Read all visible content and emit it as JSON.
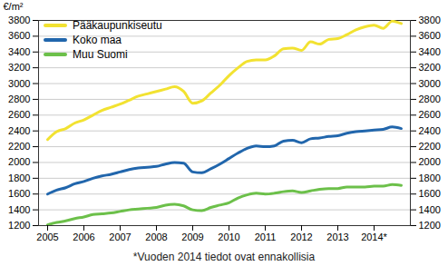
{
  "chart_data": {
    "type": "line",
    "y_label": "€/m²",
    "caption": "*Vuoden 2014 tiedot ovat ennakollisia",
    "categories": [
      "2005",
      null,
      null,
      null,
      "2006",
      null,
      null,
      null,
      "2007",
      null,
      null,
      null,
      "2008",
      null,
      null,
      null,
      "2009",
      null,
      null,
      null,
      "2010",
      null,
      null,
      null,
      "2011",
      null,
      null,
      null,
      "2012",
      null,
      null,
      null,
      "2013",
      null,
      null,
      null,
      "2014*",
      null,
      null,
      null
    ],
    "series": [
      {
        "name": "Pääkaupunkiseutu",
        "color": "#f2e231",
        "values": [
          2290,
          2390,
          2430,
          2500,
          2540,
          2600,
          2660,
          2700,
          2740,
          2790,
          2840,
          2870,
          2900,
          2930,
          2960,
          2900,
          2750,
          2780,
          2880,
          2980,
          3100,
          3200,
          3280,
          3300,
          3300,
          3350,
          3440,
          3450,
          3420,
          3530,
          3500,
          3560,
          3570,
          3620,
          3680,
          3720,
          3740,
          3700,
          3790,
          3760
        ]
      },
      {
        "name": "Koko maa",
        "color": "#2166ac",
        "values": [
          1600,
          1650,
          1680,
          1730,
          1760,
          1800,
          1830,
          1850,
          1880,
          1910,
          1930,
          1940,
          1950,
          1980,
          2000,
          1990,
          1880,
          1870,
          1920,
          1980,
          2050,
          2120,
          2180,
          2210,
          2200,
          2210,
          2270,
          2280,
          2250,
          2300,
          2310,
          2330,
          2340,
          2370,
          2390,
          2400,
          2410,
          2420,
          2450,
          2430
        ]
      },
      {
        "name": "Muu Suomi",
        "color": "#6cc04a",
        "values": [
          1210,
          1240,
          1260,
          1290,
          1310,
          1340,
          1350,
          1360,
          1380,
          1400,
          1410,
          1420,
          1430,
          1460,
          1470,
          1450,
          1400,
          1390,
          1430,
          1460,
          1490,
          1550,
          1590,
          1610,
          1600,
          1610,
          1630,
          1640,
          1620,
          1640,
          1660,
          1670,
          1670,
          1690,
          1690,
          1690,
          1700,
          1700,
          1720,
          1710
        ]
      }
    ],
    "ylim": [
      1200,
      3800
    ],
    "yticks": [
      1200,
      1400,
      1600,
      1800,
      2000,
      2200,
      2400,
      2600,
      2800,
      3000,
      3200,
      3400,
      3600,
      3800
    ],
    "grid": true,
    "legend": "top-left"
  }
}
